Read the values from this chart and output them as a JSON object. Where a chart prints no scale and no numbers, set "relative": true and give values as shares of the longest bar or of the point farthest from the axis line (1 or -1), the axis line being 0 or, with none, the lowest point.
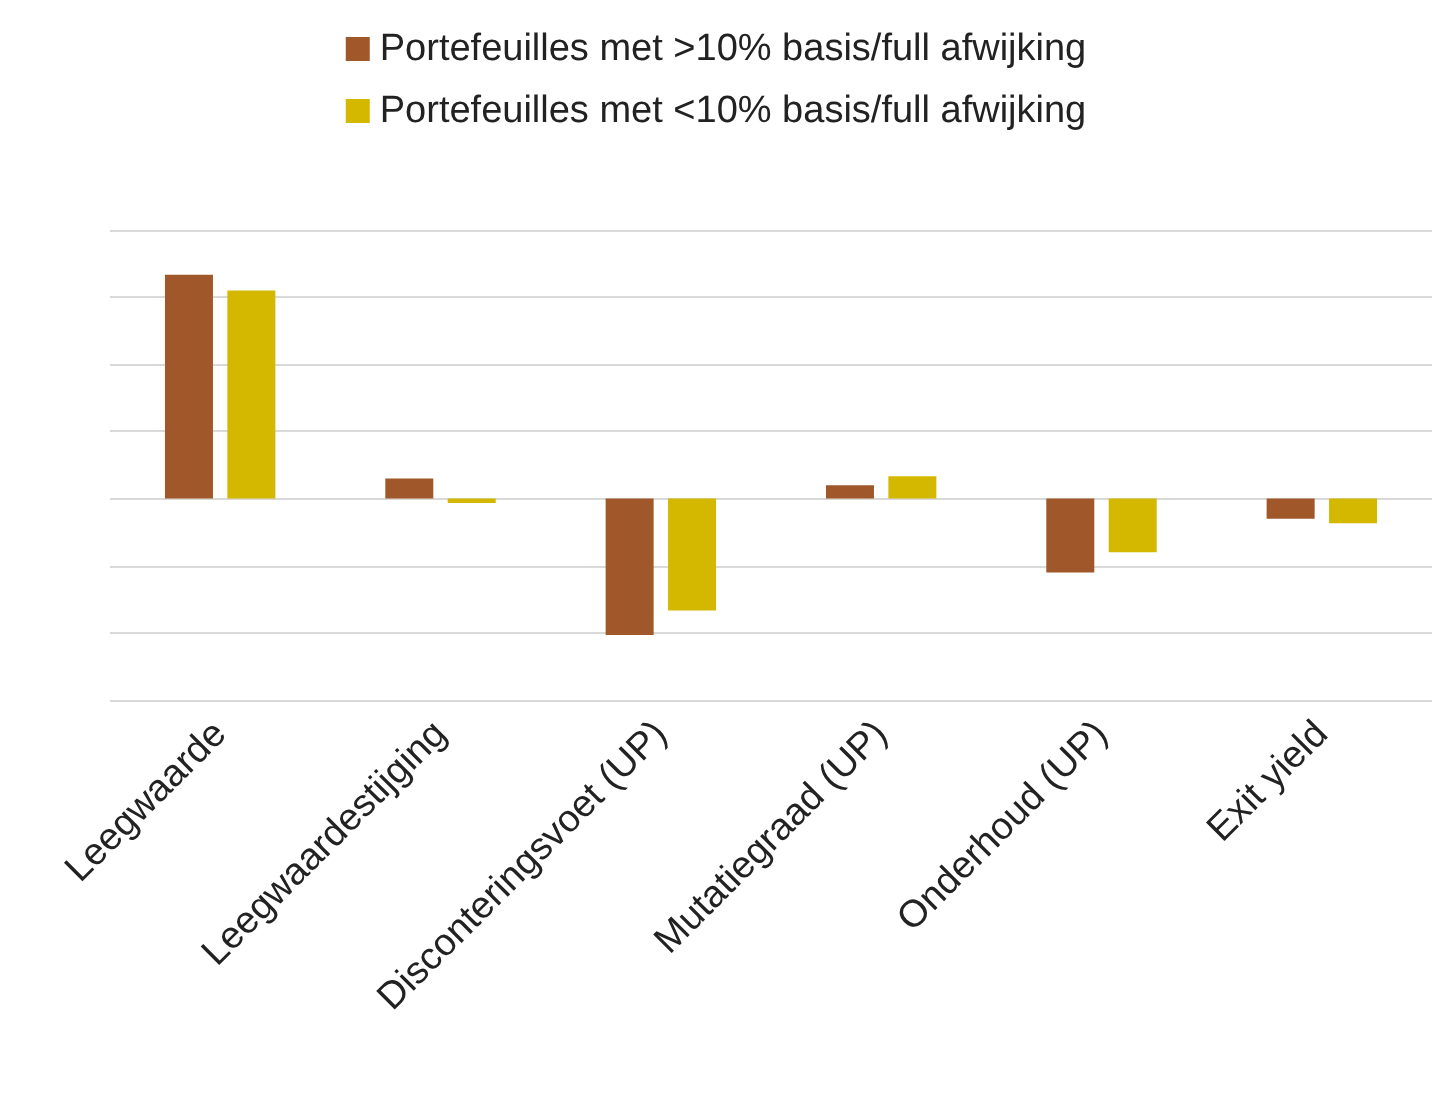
{
  "chart_data": {
    "type": "bar",
    "relative": true,
    "categories": [
      "Leegwaarde",
      "Leegwaardestijging",
      "Disconteringsvoet (UP)",
      "Mutatiegraad (UP)",
      "Onderhoud (UP)",
      "Exit yield"
    ],
    "series": [
      {
        "name": "Portefeuilles met >10% basis/full afwijking",
        "color": "#a0582a",
        "values": [
          1,
          0.09,
          -0.61,
          0.06,
          -0.33,
          -0.09
        ]
      },
      {
        "name": "Portefeuilles met <10% basis/full afwijking",
        "color": "#d4b800",
        "values": [
          0.93,
          -0.02,
          -0.5,
          0.1,
          -0.24,
          -0.11
        ]
      }
    ],
    "grid": "y",
    "legend": "top"
  }
}
